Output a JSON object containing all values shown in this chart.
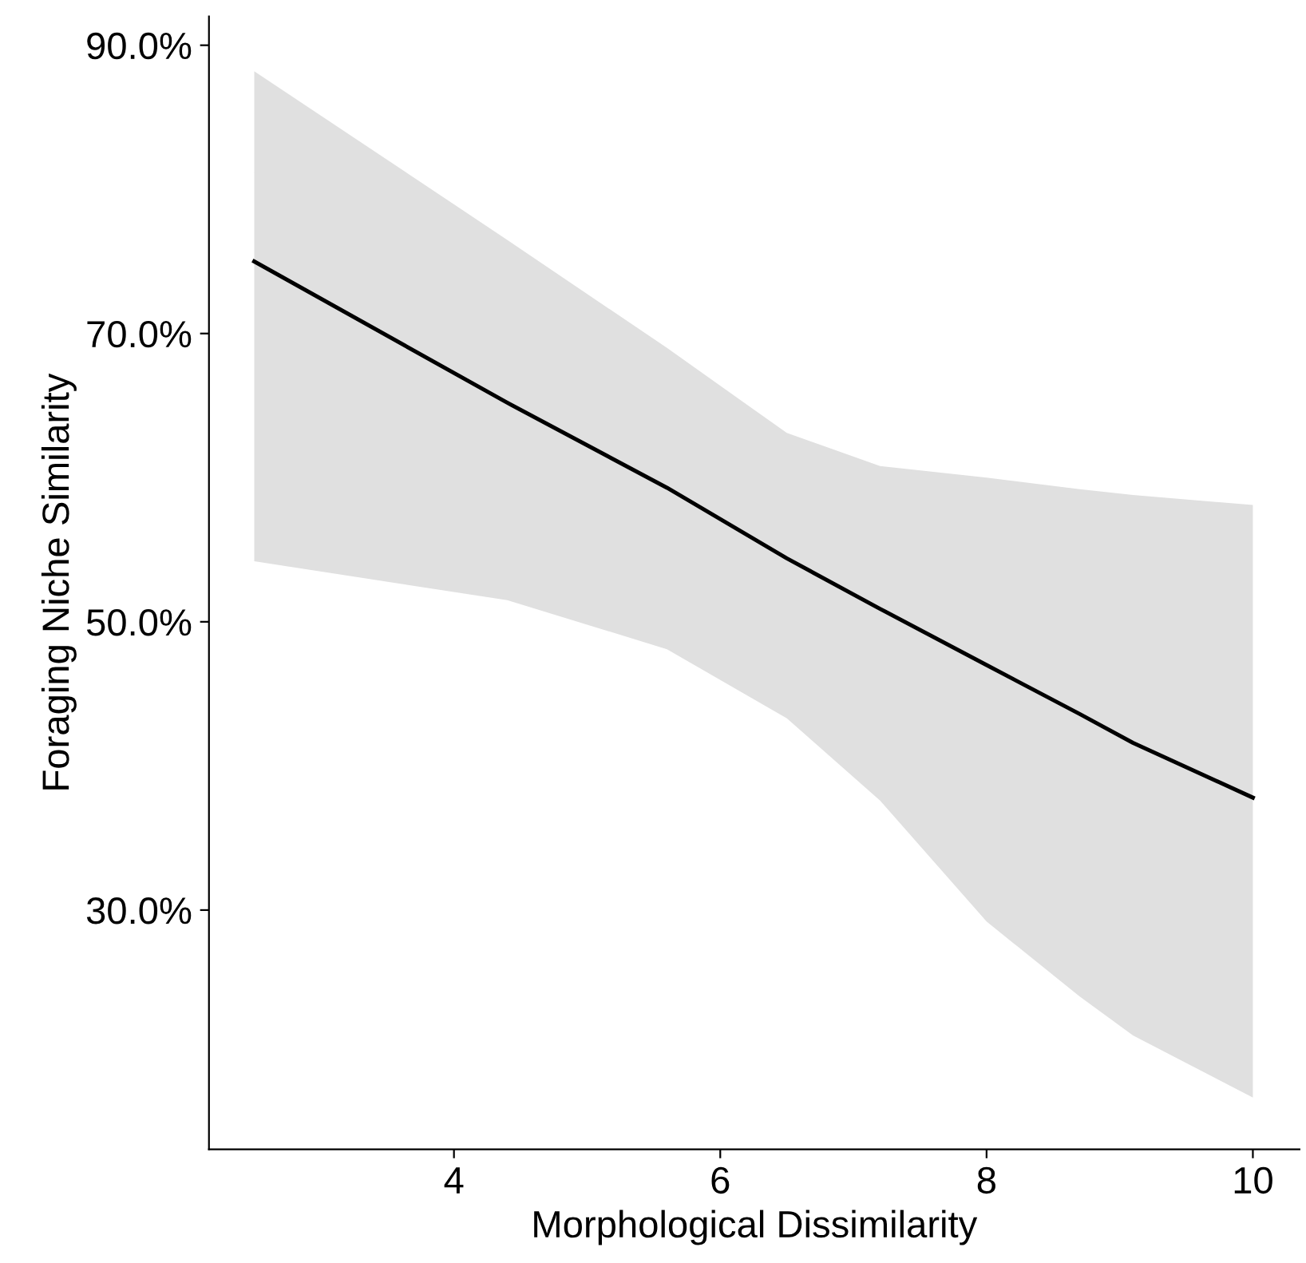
{
  "chart_data": {
    "type": "line",
    "xlabel": "Morphological Dissimilarity",
    "ylabel": "Foraging Niche Similarity",
    "series": [
      {
        "color": "#000000",
        "x": [
          2.5,
          4.4,
          5.6,
          6.5,
          7.2,
          8.0,
          8.7,
          9.1,
          10
        ],
        "values": [
          75,
          65.2,
          59.3,
          54.4,
          50.9,
          47.0,
          43.6,
          41.6,
          37.8
        ],
        "lower": [
          54.2,
          51.5,
          48.1,
          43.3,
          37.6,
          29.2,
          24.0,
          21.3,
          17.0
        ],
        "upper": [
          88.2,
          76.5,
          69.0,
          63.1,
          60.8,
          60.0,
          59.2,
          58.8,
          58.1
        ]
      }
    ],
    "xlim": [
      2.16,
      10.35
    ],
    "xticks": [
      4,
      6,
      8,
      10
    ],
    "ylim": [
      13.4,
      92
    ],
    "yticks": [
      {
        "value": 30,
        "label": "30.0%"
      },
      {
        "value": 50,
        "label": "50.0%"
      },
      {
        "value": 70,
        "label": "70.0%"
      },
      {
        "value": 90,
        "label": "90.0%"
      }
    ],
    "grid": false,
    "legend": false,
    "marker": "none",
    "line_style": "solid"
  }
}
